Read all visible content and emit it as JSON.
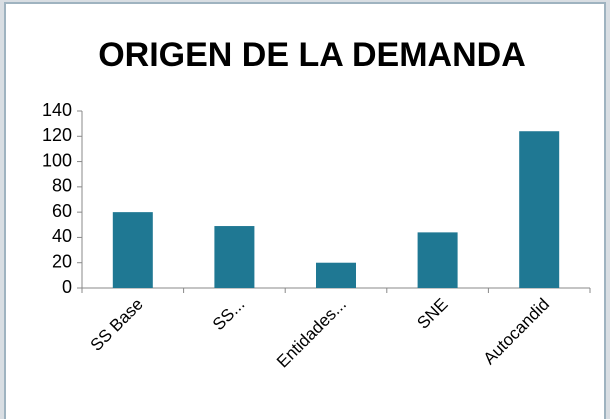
{
  "chart_data": {
    "type": "bar",
    "title": "ORIGEN DE LA DEMANDA",
    "categories": [
      "SS Base",
      "SS...",
      "Entidades...",
      "SNE",
      "Autocandid"
    ],
    "values": [
      60,
      49,
      20,
      44,
      124
    ],
    "color": "#1f7893",
    "ylim": [
      0,
      140
    ],
    "yticks": [
      0,
      20,
      40,
      60,
      80,
      100,
      120,
      140
    ],
    "grid": false
  }
}
